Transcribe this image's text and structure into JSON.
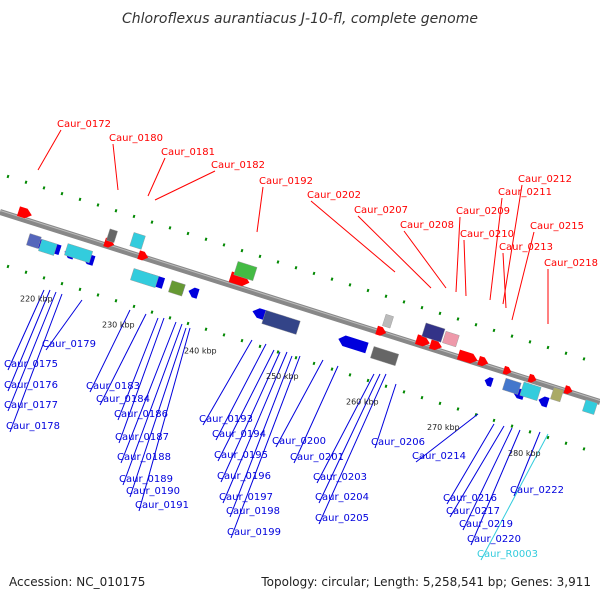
{
  "title": "Chloroflexus aurantiacus J-10-fl, complete genome",
  "accession": "Accession: NC_010175",
  "topology": "Topology: circular; Length: 5,258,541 bp; Genes: 3,911",
  "colors": {
    "forward": "#ff0000",
    "reverse": "#0000dd",
    "rna": "#33ccdd",
    "backbone": "#888888",
    "ticks": "#008800"
  },
  "kbp_labels": [
    "220 kbp",
    "230 kbp",
    "240 kbp",
    "250 kbp",
    "260 kbp",
    "270 kbp",
    "280 kbp"
  ],
  "forward_genes": [
    "Caur_0172",
    "Caur_0180",
    "Caur_0181",
    "Caur_0182",
    "Caur_0192",
    "Caur_0202",
    "Caur_0207",
    "Caur_0208",
    "Caur_0209",
    "Caur_0210",
    "Caur_0211",
    "Caur_0212",
    "Caur_0213",
    "Caur_0215",
    "Caur_0218"
  ],
  "reverse_genes": [
    "Caur_0175",
    "Caur_0176",
    "Caur_0177",
    "Caur_0178",
    "Caur_0179",
    "Caur_0183",
    "Caur_0184",
    "Caur_0186",
    "Caur_0187",
    "Caur_0188",
    "Caur_0189",
    "Caur_0190",
    "Caur_0191",
    "Caur_0193",
    "Caur_0194",
    "Caur_0195",
    "Caur_0196",
    "Caur_0197",
    "Caur_0198",
    "Caur_0199",
    "Caur_0200",
    "Caur_0201",
    "Caur_0203",
    "Caur_0204",
    "Caur_0205",
    "Caur_0206",
    "Caur_0214",
    "Caur_0216",
    "Caur_0217",
    "Caur_0219",
    "Caur_0220",
    "Caur_0222"
  ],
  "rna_genes": [
    "Caur_R0003"
  ]
}
